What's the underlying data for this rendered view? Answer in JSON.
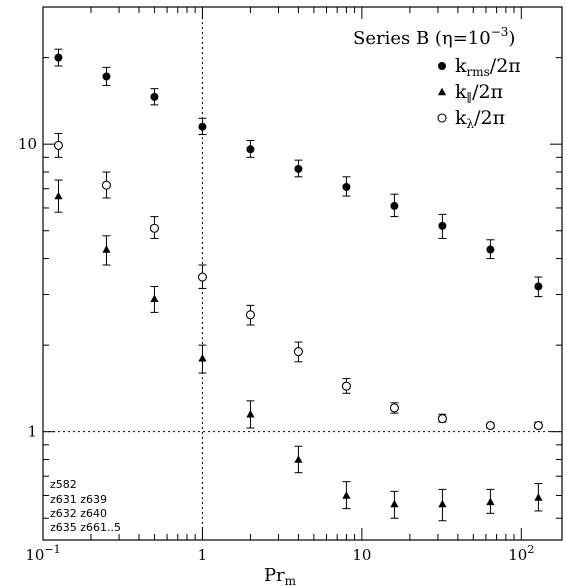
{
  "chart_data": {
    "type": "scatter",
    "title_text": "Series B (η=10",
    "title_exp": "−3",
    "title_close": ")",
    "xlabel": {
      "base": "Pr",
      "sub": "m"
    },
    "ylabel": "",
    "xscale": "log",
    "yscale": "log",
    "xlim": [
      0.1,
      180
    ],
    "ylim": [
      0.42,
      30
    ],
    "reference_lines": {
      "x": 1,
      "y": 1
    },
    "x_tick_labels": [
      {
        "value": 0.1,
        "base": "10",
        "exp": "−1"
      },
      {
        "value": 1,
        "base": "1",
        "exp": ""
      },
      {
        "value": 10,
        "base": "10",
        "exp": ""
      },
      {
        "value": 100,
        "base": "10",
        "exp": "2"
      }
    ],
    "y_tick_labels": [
      {
        "value": 1,
        "label": "1"
      },
      {
        "value": 10,
        "label": "10"
      }
    ],
    "legend_position": "top-right",
    "series": [
      {
        "name_base": "k",
        "name_sub": "rms",
        "name_suffix": "/2π",
        "marker": "filled-circle",
        "points": [
          {
            "x": 0.125,
            "y": 20.0,
            "lo": 18.7,
            "hi": 21.4
          },
          {
            "x": 0.25,
            "y": 17.2,
            "lo": 16.0,
            "hi": 18.5
          },
          {
            "x": 0.5,
            "y": 14.6,
            "lo": 13.7,
            "hi": 15.6
          },
          {
            "x": 1,
            "y": 11.5,
            "lo": 10.8,
            "hi": 12.3
          },
          {
            "x": 2,
            "y": 9.6,
            "lo": 9.0,
            "hi": 10.3
          },
          {
            "x": 4,
            "y": 8.2,
            "lo": 7.7,
            "hi": 8.8
          },
          {
            "x": 8,
            "y": 7.1,
            "lo": 6.6,
            "hi": 7.7
          },
          {
            "x": 16,
            "y": 6.1,
            "lo": 5.6,
            "hi": 6.7
          },
          {
            "x": 32,
            "y": 5.2,
            "lo": 4.7,
            "hi": 5.7
          },
          {
            "x": 64,
            "y": 4.3,
            "lo": 4.0,
            "hi": 4.65
          },
          {
            "x": 128,
            "y": 3.2,
            "lo": 2.95,
            "hi": 3.45
          }
        ]
      },
      {
        "name_base": "k",
        "name_sub": "∥",
        "name_suffix": "/2π",
        "marker": "filled-triangle",
        "points": [
          {
            "x": 0.125,
            "y": 6.6,
            "lo": 5.8,
            "hi": 7.5
          },
          {
            "x": 0.25,
            "y": 4.3,
            "lo": 3.8,
            "hi": 4.8
          },
          {
            "x": 0.5,
            "y": 2.9,
            "lo": 2.6,
            "hi": 3.2
          },
          {
            "x": 1,
            "y": 1.8,
            "lo": 1.6,
            "hi": 2.0
          },
          {
            "x": 2,
            "y": 1.15,
            "lo": 1.03,
            "hi": 1.28
          },
          {
            "x": 4,
            "y": 0.8,
            "lo": 0.72,
            "hi": 0.89
          },
          {
            "x": 8,
            "y": 0.6,
            "lo": 0.54,
            "hi": 0.67
          },
          {
            "x": 16,
            "y": 0.56,
            "lo": 0.5,
            "hi": 0.62
          },
          {
            "x": 32,
            "y": 0.56,
            "lo": 0.49,
            "hi": 0.63
          },
          {
            "x": 64,
            "y": 0.57,
            "lo": 0.52,
            "hi": 0.63
          },
          {
            "x": 128,
            "y": 0.59,
            "lo": 0.53,
            "hi": 0.66
          }
        ]
      },
      {
        "name_base": "k",
        "name_sub": "λ",
        "name_suffix": "/2π",
        "marker": "open-circle",
        "points": [
          {
            "x": 0.125,
            "y": 9.9,
            "lo": 9.0,
            "hi": 10.9
          },
          {
            "x": 0.25,
            "y": 7.2,
            "lo": 6.5,
            "hi": 8.0
          },
          {
            "x": 0.5,
            "y": 5.1,
            "lo": 4.7,
            "hi": 5.6
          },
          {
            "x": 1,
            "y": 3.45,
            "lo": 3.15,
            "hi": 3.8
          },
          {
            "x": 2,
            "y": 2.55,
            "lo": 2.35,
            "hi": 2.75
          },
          {
            "x": 4,
            "y": 1.9,
            "lo": 1.75,
            "hi": 2.05
          },
          {
            "x": 8,
            "y": 1.44,
            "lo": 1.36,
            "hi": 1.53
          },
          {
            "x": 16,
            "y": 1.21,
            "lo": 1.16,
            "hi": 1.26
          },
          {
            "x": 32,
            "y": 1.11,
            "lo": 1.08,
            "hi": 1.15
          },
          {
            "x": 64,
            "y": 1.05,
            "lo": 1.03,
            "hi": 1.07
          },
          {
            "x": 128,
            "y": 1.05,
            "lo": 1.03,
            "hi": 1.08
          }
        ]
      }
    ],
    "annotations": [
      "z582",
      "z631 z639",
      "z632 z640",
      "z635 z661..5"
    ]
  }
}
